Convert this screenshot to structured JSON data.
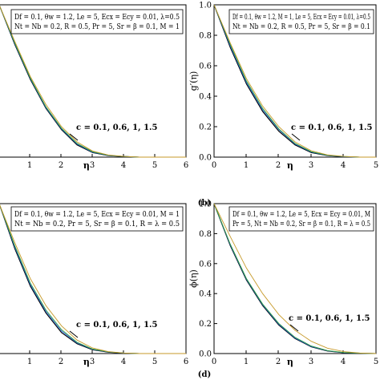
{
  "chart_data": [
    {
      "type": "line",
      "panel_label": "",
      "xlabel": "η",
      "ylabel": "",
      "xlim": [
        0,
        6
      ],
      "ylim": [
        0,
        1
      ],
      "xticks": [
        "1",
        "2",
        "3",
        "4",
        "5",
        "6"
      ],
      "yticks": [],
      "legend_lines": [
        "Df = 0.1, θw = 1.2, Le = 5, Ecx = Ecy = 0.01, λ=0.5",
        "Nt = Nb = 0.2, R = 0.5, Pr = 5, Sr = β = 0.1, M = 1"
      ],
      "annotation": "c = 0.1, 0.6, 1, 1.5",
      "series": [
        {
          "color": "#000000",
          "x": [
            0,
            0.5,
            1,
            1.5,
            2,
            2.5,
            3,
            3.5,
            4,
            4.5,
            5,
            5.5,
            6
          ],
          "y": [
            1,
            0.74,
            0.51,
            0.32,
            0.18,
            0.08,
            0.03,
            0.01,
            0.004,
            0,
            0,
            0,
            0
          ]
        },
        {
          "color": "#1f5fd8",
          "x": [
            0,
            0.5,
            1,
            1.5,
            2,
            2.5,
            3,
            3.5,
            4,
            4.5,
            5,
            5.5,
            6
          ],
          "y": [
            1,
            0.745,
            0.515,
            0.325,
            0.185,
            0.085,
            0.032,
            0.011,
            0.004,
            0,
            0,
            0,
            0
          ]
        },
        {
          "color": "#2e9c3a",
          "x": [
            0,
            0.5,
            1,
            1.5,
            2,
            2.5,
            3,
            3.5,
            4,
            4.5,
            5,
            5.5,
            6
          ],
          "y": [
            1,
            0.75,
            0.52,
            0.33,
            0.19,
            0.09,
            0.035,
            0.012,
            0.004,
            0,
            0,
            0,
            0
          ]
        },
        {
          "color": "#c79a2a",
          "x": [
            0,
            0.5,
            1,
            1.5,
            2,
            2.5,
            3,
            3.5,
            4,
            4.5,
            5,
            5.5,
            6
          ],
          "y": [
            1,
            0.76,
            0.53,
            0.345,
            0.2,
            0.1,
            0.04,
            0.014,
            0.005,
            0,
            0,
            0,
            0
          ]
        }
      ]
    },
    {
      "type": "line",
      "panel_label": "(b)",
      "xlabel": "η",
      "ylabel": "g′(η)",
      "xlim": [
        0,
        5
      ],
      "ylim": [
        0,
        1
      ],
      "xticks": [
        "0",
        "1",
        "2",
        "3",
        "4",
        "5"
      ],
      "yticks": [
        "0.0",
        "0.2",
        "0.4",
        "0.6",
        "0.8",
        "1.0"
      ],
      "legend_lines": [
        "Df = 0.1, θw = 1.2, M = 1, Le = 5, Ecx = Ecy = 0.01, λ=0.5",
        "Nt = Nb = 0.2, R = 0.5, Pr = 5, Sr = β = 0.1"
      ],
      "annotation": "c = 0.1, 0.6, 1, 1.5",
      "series": [
        {
          "color": "#000000",
          "x": [
            0,
            0.5,
            1,
            1.5,
            2,
            2.5,
            3,
            3.5,
            4,
            4.5,
            5
          ],
          "y": [
            1,
            0.72,
            0.48,
            0.3,
            0.17,
            0.08,
            0.03,
            0.01,
            0.003,
            0,
            0
          ]
        },
        {
          "color": "#1f5fd8",
          "x": [
            0,
            0.5,
            1,
            1.5,
            2,
            2.5,
            3,
            3.5,
            4,
            4.5,
            5
          ],
          "y": [
            1,
            0.73,
            0.49,
            0.31,
            0.18,
            0.085,
            0.033,
            0.011,
            0.003,
            0,
            0
          ]
        },
        {
          "color": "#2e9c3a",
          "x": [
            0,
            0.5,
            1,
            1.5,
            2,
            2.5,
            3,
            3.5,
            4,
            4.5,
            5
          ],
          "y": [
            1,
            0.74,
            0.5,
            0.32,
            0.185,
            0.09,
            0.036,
            0.012,
            0.004,
            0,
            0
          ]
        },
        {
          "color": "#c79a2a",
          "x": [
            0,
            0.5,
            1,
            1.5,
            2,
            2.5,
            3,
            3.5,
            4,
            4.5,
            5
          ],
          "y": [
            1,
            0.75,
            0.515,
            0.335,
            0.2,
            0.1,
            0.042,
            0.015,
            0.005,
            0,
            0
          ]
        }
      ]
    },
    {
      "type": "line",
      "panel_label": "",
      "xlabel": "η",
      "ylabel": "",
      "xlim": [
        0,
        6
      ],
      "ylim": [
        0,
        1
      ],
      "xticks": [
        "1",
        "2",
        "3",
        "4",
        "5",
        "6"
      ],
      "yticks": [],
      "legend_lines": [
        "Df = 0.1, θw = 1.2, Le = 5, Ecx = Ecy = 0.01, M = 1",
        "Nt = Nb = 0.2, Pr = 5, Sr = β = 0.1, R = λ = 0.5"
      ],
      "annotation": "c = 0.1, 0.6, 1, 1.5",
      "series": [
        {
          "color": "#000000",
          "x": [
            0,
            0.5,
            1,
            1.5,
            2,
            2.5,
            3,
            3.5,
            4,
            4.5,
            5,
            5.5,
            6
          ],
          "y": [
            1,
            0.7,
            0.45,
            0.27,
            0.14,
            0.065,
            0.025,
            0.009,
            0.003,
            0,
            0,
            0,
            0
          ]
        },
        {
          "color": "#1f5fd8",
          "x": [
            0,
            0.5,
            1,
            1.5,
            2,
            2.5,
            3,
            3.5,
            4,
            4.5,
            5,
            5.5,
            6
          ],
          "y": [
            1,
            0.71,
            0.46,
            0.28,
            0.15,
            0.07,
            0.028,
            0.01,
            0.003,
            0,
            0,
            0,
            0
          ]
        },
        {
          "color": "#2e9c3a",
          "x": [
            0,
            0.5,
            1,
            1.5,
            2,
            2.5,
            3,
            3.5,
            4,
            4.5,
            5,
            5.5,
            6
          ],
          "y": [
            1,
            0.72,
            0.47,
            0.29,
            0.16,
            0.075,
            0.03,
            0.011,
            0.004,
            0,
            0,
            0,
            0
          ]
        },
        {
          "color": "#c79a2a",
          "x": [
            0,
            0.5,
            1,
            1.5,
            2,
            2.5,
            3,
            3.5,
            4,
            4.5,
            5,
            5.5,
            6
          ],
          "y": [
            1,
            0.74,
            0.5,
            0.32,
            0.185,
            0.09,
            0.037,
            0.013,
            0.004,
            0,
            0,
            0,
            0
          ]
        }
      ]
    },
    {
      "type": "line",
      "panel_label": "(d)",
      "xlabel": "η",
      "ylabel": "ϕ(η)",
      "xlim": [
        0,
        5
      ],
      "ylim": [
        0,
        1
      ],
      "xticks": [
        "0",
        "1",
        "2",
        "3",
        "4",
        "5"
      ],
      "yticks": [
        "0.0",
        "0.2",
        "0.4",
        "0.6",
        "0.8",
        "1.0"
      ],
      "legend_lines": [
        "Df = 0.1, θw = 1.2, Le = 5, Ecx = Ecy = 0.01, M",
        "Pr = 5, Nt = Nb = 0.2, Sr = β = 0.1, R = λ = 0.5"
      ],
      "annotation": "c = 0.1, 0.6, 1, 1.5",
      "series": [
        {
          "color": "#000000",
          "x": [
            0,
            0.5,
            1,
            1.5,
            2,
            2.5,
            3,
            3.5,
            4,
            4.5,
            5
          ],
          "y": [
            1,
            0.72,
            0.49,
            0.32,
            0.19,
            0.1,
            0.045,
            0.017,
            0.006,
            0.002,
            0
          ]
        },
        {
          "color": "#1f5fd8",
          "x": [
            0,
            0.5,
            1,
            1.5,
            2,
            2.5,
            3,
            3.5,
            4,
            4.5,
            5
          ],
          "y": [
            1,
            0.725,
            0.495,
            0.325,
            0.195,
            0.104,
            0.047,
            0.018,
            0.006,
            0.002,
            0
          ]
        },
        {
          "color": "#2e9c3a",
          "x": [
            0,
            0.5,
            1,
            1.5,
            2,
            2.5,
            3,
            3.5,
            4,
            4.5,
            5
          ],
          "y": [
            1,
            0.73,
            0.5,
            0.33,
            0.2,
            0.108,
            0.05,
            0.02,
            0.007,
            0.002,
            0
          ]
        },
        {
          "color": "#c79a2a",
          "x": [
            0,
            0.5,
            1,
            1.5,
            2,
            2.5,
            3,
            3.5,
            4,
            4.5,
            5
          ],
          "y": [
            1,
            0.78,
            0.57,
            0.4,
            0.26,
            0.155,
            0.082,
            0.036,
            0.013,
            0.004,
            0
          ]
        }
      ]
    }
  ]
}
